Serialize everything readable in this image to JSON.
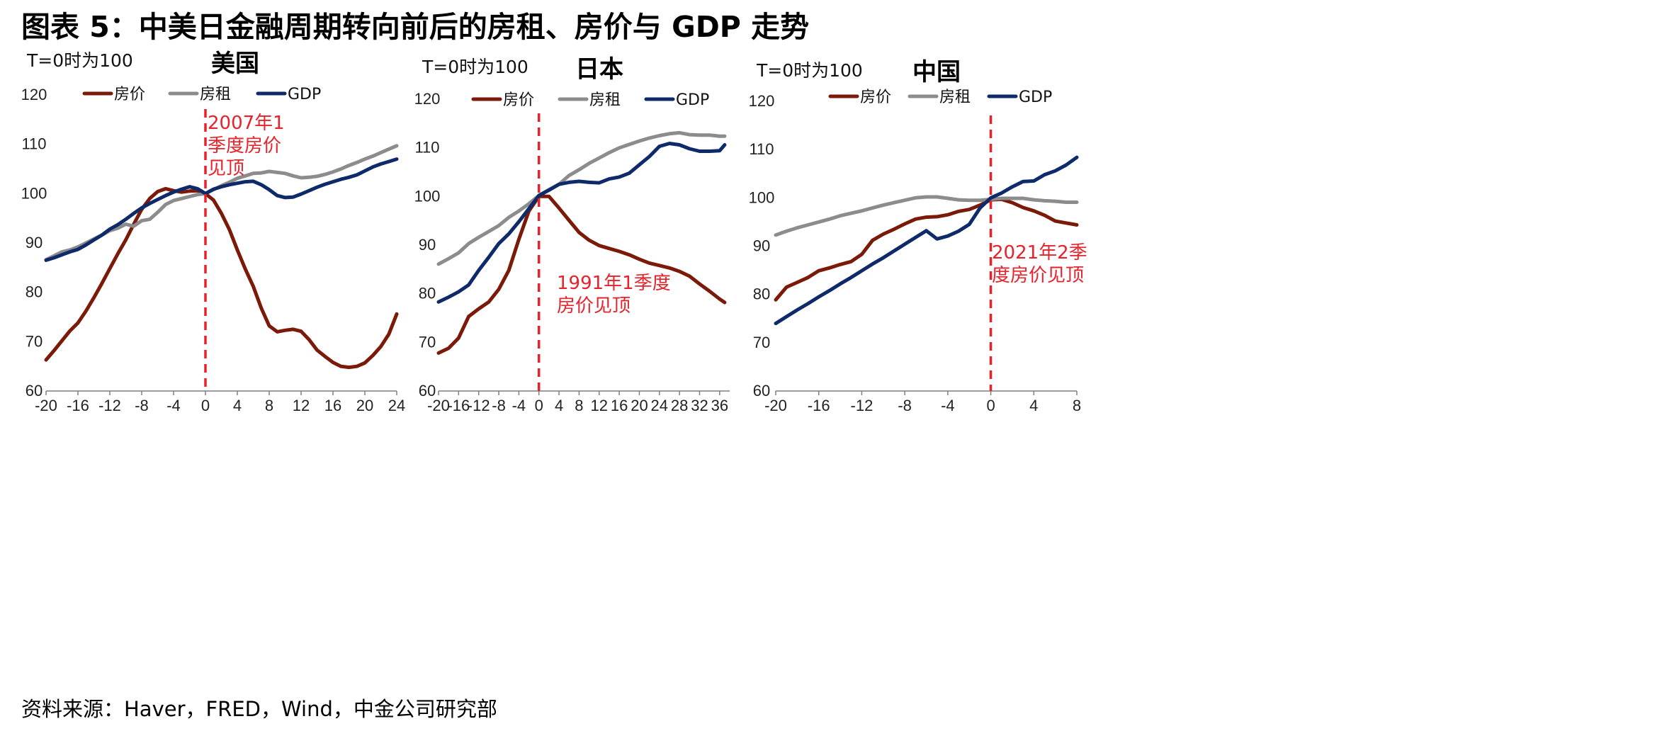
{
  "title": "图表 5：中美日金融周期转向前后的房租、房价与 GDP 走势",
  "source": "资料来源：Haver，FRED，Wind，中金公司研究部",
  "colors": {
    "price": "#7b1a08",
    "rent": "#8c8c8c",
    "gdp": "#0e2a6b",
    "annotation": "#e8222a"
  },
  "chart_data": [
    {
      "type": "line",
      "title": "美国",
      "unit_label": "T=0时为100",
      "legend": [
        "房价",
        "房租",
        "GDP"
      ],
      "legend_position": "top",
      "ylim": [
        60,
        120
      ],
      "yticks": [
        "60",
        "70",
        "80",
        "90",
        "100",
        "110",
        "120"
      ],
      "xlim": [
        -20,
        24
      ],
      "xticks": [
        "-20",
        "-16",
        "-12",
        "-8",
        "-4",
        "0",
        "4",
        "8",
        "12",
        "16",
        "20",
        "24"
      ],
      "grid": false,
      "marker_x": 0,
      "annotation": [
        "2007年1",
        "季度房价",
        "见顶"
      ],
      "series": [
        {
          "name": "房价",
          "key": "price",
          "x": [
            -20,
            -19,
            -18,
            -17,
            -16,
            -15,
            -14,
            -13,
            -12,
            -11,
            -10,
            -9,
            -8,
            -7,
            -6,
            -5,
            -4,
            -3,
            -2,
            -1,
            0,
            1,
            2,
            3,
            4,
            5,
            6,
            7,
            8,
            9,
            10,
            11,
            12,
            13,
            14,
            15,
            16,
            17,
            18,
            19,
            20,
            21,
            22,
            23,
            24
          ],
          "values": [
            66.3,
            68.2,
            70.2,
            72.2,
            73.8,
            76.2,
            78.9,
            81.8,
            84.8,
            87.8,
            90.6,
            93.8,
            96.8,
            99.0,
            100.4,
            101.0,
            100.6,
            100.3,
            100.5,
            100.6,
            100.0,
            98.7,
            96.0,
            92.7,
            88.6,
            84.7,
            81.2,
            76.8,
            73.2,
            72.0,
            72.3,
            72.5,
            72.1,
            70.4,
            68.3,
            67.0,
            65.8,
            65.0,
            64.8,
            65.0,
            65.7,
            67.2,
            69.0,
            71.5,
            75.6
          ]
        },
        {
          "name": "房租",
          "key": "rent",
          "x": [
            -20,
            -19,
            -18,
            -17,
            -16,
            -15,
            -14,
            -13,
            -12,
            -11,
            -10,
            -9,
            -8,
            -7,
            -6,
            -5,
            -4,
            -3,
            -2,
            -1,
            0,
            1,
            2,
            3,
            4,
            5,
            6,
            7,
            8,
            9,
            10,
            11,
            12,
            13,
            14,
            15,
            16,
            17,
            18,
            19,
            20,
            21,
            22,
            23,
            24
          ],
          "values": [
            86.6,
            87.4,
            88.2,
            88.6,
            89.2,
            90.0,
            90.8,
            91.6,
            92.5,
            93.0,
            93.8,
            93.4,
            94.5,
            94.8,
            96.2,
            97.8,
            98.6,
            99.0,
            99.4,
            99.8,
            100.0,
            100.8,
            101.6,
            102.3,
            103.1,
            103.6,
            104.1,
            104.2,
            104.5,
            104.3,
            104.1,
            103.6,
            103.2,
            103.3,
            103.5,
            103.9,
            104.4,
            105.0,
            105.7,
            106.3,
            107.0,
            107.6,
            108.3,
            109.0,
            109.7
          ]
        },
        {
          "name": "GDP",
          "key": "gdp",
          "x": [
            -20,
            -19,
            -18,
            -17,
            -16,
            -15,
            -14,
            -13,
            -12,
            -11,
            -10,
            -9,
            -8,
            -7,
            -6,
            -5,
            -4,
            -3,
            -2,
            -1,
            0,
            1,
            2,
            3,
            4,
            5,
            6,
            7,
            8,
            9,
            10,
            11,
            12,
            13,
            14,
            15,
            16,
            17,
            18,
            19,
            20,
            21,
            22,
            23,
            24
          ],
          "values": [
            86.5,
            87.0,
            87.6,
            88.2,
            88.7,
            89.6,
            90.6,
            91.6,
            92.8,
            93.7,
            94.8,
            96.0,
            97.1,
            98.0,
            98.8,
            99.6,
            100.3,
            100.9,
            101.4,
            101.0,
            100.0,
            100.9,
            101.4,
            101.8,
            102.1,
            102.4,
            102.5,
            101.8,
            100.8,
            99.6,
            99.2,
            99.3,
            99.9,
            100.6,
            101.3,
            101.9,
            102.4,
            102.9,
            103.3,
            103.8,
            104.6,
            105.4,
            106.0,
            106.5,
            107.0
          ]
        }
      ]
    },
    {
      "type": "line",
      "title": "日本",
      "unit_label": "T=0时为100",
      "legend": [
        "房价",
        "房租",
        "GDP"
      ],
      "legend_position": "top",
      "ylim": [
        60,
        120
      ],
      "yticks": [
        "60",
        "70",
        "80",
        "90",
        "100",
        "110",
        "120"
      ],
      "xlim": [
        -20,
        38
      ],
      "xticks": [
        "-20",
        "-16",
        "-12",
        "-8",
        "-4",
        "0",
        "4",
        "8",
        "12",
        "16",
        "20",
        "24",
        "28",
        "32",
        "36"
      ],
      "grid": false,
      "marker_x": 0,
      "annotation": [
        "1991年1季度",
        "房价见顶"
      ],
      "series": [
        {
          "name": "房价",
          "key": "price",
          "x": [
            -20,
            -18,
            -16,
            -14,
            -12,
            -10,
            -8,
            -6,
            -4,
            -2,
            0,
            2,
            4,
            6,
            8,
            10,
            12,
            14,
            16,
            18,
            20,
            22,
            24,
            26,
            28,
            30,
            32,
            34,
            36,
            37
          ],
          "values": [
            67.8,
            68.8,
            70.9,
            75.3,
            76.9,
            78.3,
            80.9,
            84.8,
            91.2,
            97.0,
            100.0,
            100.0,
            97.6,
            95.1,
            92.6,
            91.0,
            89.9,
            89.3,
            88.7,
            88.0,
            87.1,
            86.3,
            85.8,
            85.3,
            84.6,
            83.6,
            82.0,
            80.5,
            78.9,
            78.2
          ]
        },
        {
          "name": "房租",
          "key": "rent",
          "x": [
            -20,
            -18,
            -16,
            -14,
            -12,
            -10,
            -8,
            -6,
            -4,
            -2,
            0,
            2,
            4,
            6,
            8,
            10,
            12,
            14,
            16,
            18,
            20,
            22,
            24,
            26,
            28,
            30,
            32,
            34,
            36,
            37
          ],
          "values": [
            86.1,
            87.2,
            88.4,
            90.3,
            91.6,
            92.8,
            94.0,
            95.7,
            97.0,
            98.5,
            100.2,
            101.4,
            102.5,
            104.3,
            105.5,
            106.8,
            107.9,
            109.0,
            110.0,
            110.7,
            111.4,
            112.0,
            112.5,
            112.9,
            113.1,
            112.7,
            112.6,
            112.6,
            112.4,
            112.4
          ]
        },
        {
          "name": "GDP",
          "key": "gdp",
          "x": [
            -20,
            -18,
            -16,
            -14,
            -12,
            -10,
            -8,
            -6,
            -4,
            -2,
            0,
            2,
            4,
            6,
            8,
            10,
            12,
            14,
            16,
            18,
            20,
            22,
            24,
            26,
            28,
            30,
            32,
            34,
            36,
            37
          ],
          "values": [
            78.3,
            79.3,
            80.4,
            81.8,
            84.8,
            87.5,
            90.3,
            92.3,
            94.8,
            97.5,
            100.2,
            101.3,
            102.5,
            102.9,
            103.1,
            102.9,
            102.8,
            103.6,
            104.0,
            104.8,
            106.5,
            108.2,
            110.3,
            110.9,
            110.6,
            109.8,
            109.3,
            109.3,
            109.4,
            110.6
          ]
        }
      ]
    },
    {
      "type": "line",
      "title": "中国",
      "unit_label": "T=0时为100",
      "legend": [
        "房价",
        "房租",
        "GDP"
      ],
      "legend_position": "top",
      "ylim": [
        60,
        120
      ],
      "yticks": [
        "60",
        "70",
        "80",
        "90",
        "100",
        "110",
        "120"
      ],
      "xlim": [
        -20,
        8
      ],
      "xticks": [
        "-20",
        "-16",
        "-12",
        "-8",
        "-4",
        "0",
        "4",
        "8"
      ],
      "grid": false,
      "marker_x": 0,
      "annotation": [
        "2021年2季",
        "度房价见顶"
      ],
      "series": [
        {
          "name": "房价",
          "key": "price",
          "x": [
            -20,
            -19,
            -18,
            -17,
            -16,
            -15,
            -14,
            -13,
            -12,
            -11,
            -10,
            -9,
            -8,
            -7,
            -6,
            -5,
            -4,
            -3,
            -2,
            -1,
            0,
            1,
            2,
            3,
            4,
            5,
            6,
            7,
            8
          ],
          "values": [
            78.9,
            81.5,
            82.5,
            83.5,
            84.9,
            85.5,
            86.2,
            86.8,
            88.3,
            91.2,
            92.5,
            93.5,
            94.6,
            95.6,
            96.0,
            96.1,
            96.5,
            97.2,
            97.6,
            98.5,
            99.6,
            99.7,
            99.0,
            98.0,
            97.3,
            96.4,
            95.2,
            94.8,
            94.4
          ]
        },
        {
          "name": "房租",
          "key": "rent",
          "x": [
            -20,
            -19,
            -18,
            -17,
            -16,
            -15,
            -14,
            -13,
            -12,
            -11,
            -10,
            -9,
            -8,
            -7,
            -6,
            -5,
            -4,
            -3,
            -2,
            -1,
            0,
            1,
            2,
            3,
            4,
            5,
            6,
            7,
            8
          ],
          "values": [
            92.3,
            93.1,
            93.8,
            94.4,
            95.0,
            95.6,
            96.3,
            96.8,
            97.3,
            97.9,
            98.5,
            99.0,
            99.5,
            100.0,
            100.2,
            100.2,
            99.9,
            99.6,
            99.5,
            99.5,
            99.7,
            99.9,
            99.9,
            99.9,
            99.6,
            99.4,
            99.3,
            99.1,
            99.1
          ]
        },
        {
          "name": "GDP",
          "key": "gdp",
          "x": [
            -20,
            -19,
            -18,
            -17,
            -16,
            -15,
            -14,
            -13,
            -12,
            -11,
            -10,
            -9,
            -8,
            -7,
            -6,
            -5,
            -4,
            -3,
            -2,
            -1,
            0,
            1,
            2,
            3,
            4,
            5,
            6,
            7,
            8
          ],
          "values": [
            74.0,
            75.4,
            76.8,
            78.1,
            79.5,
            80.8,
            82.2,
            83.5,
            84.9,
            86.3,
            87.6,
            89.0,
            90.4,
            91.8,
            93.2,
            91.5,
            92.1,
            93.1,
            94.5,
            97.9,
            100.0,
            101.0,
            102.3,
            103.4,
            103.5,
            104.8,
            105.6,
            106.8,
            108.4
          ]
        }
      ]
    }
  ]
}
